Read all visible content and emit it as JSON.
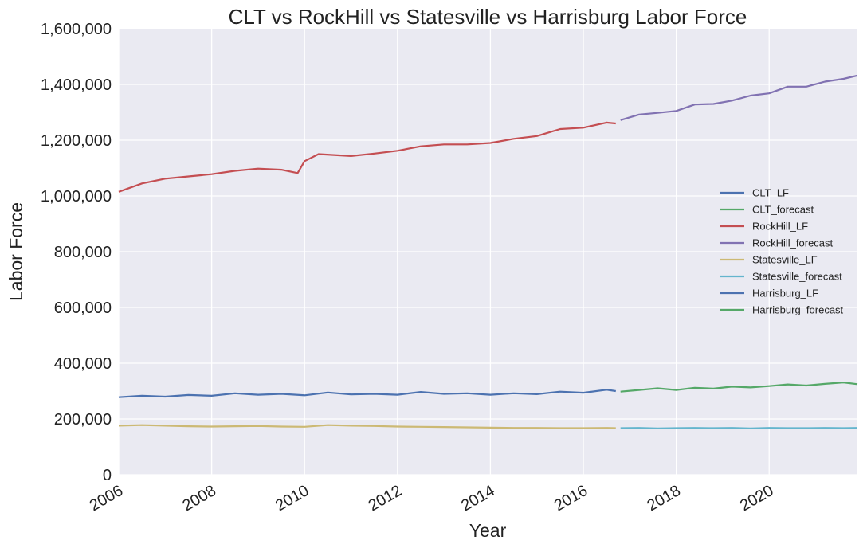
{
  "chart_data": {
    "type": "line",
    "title": "CLT vs RockHill vs Statesville vs Harrisburg Labor Force",
    "xlabel": "Year",
    "ylabel": "Labor Force",
    "xlim": [
      2006.0,
      2021.9
    ],
    "ylim": [
      0,
      1600000
    ],
    "x_ticks": [
      2006,
      2008,
      2010,
      2012,
      2014,
      2016,
      2018,
      2020
    ],
    "x_tick_labels": [
      "2006",
      "2008",
      "2010",
      "2012",
      "2014",
      "2016",
      "2018",
      "2020"
    ],
    "y_ticks": [
      0,
      200000,
      400000,
      600000,
      800000,
      1000000,
      1200000,
      1400000,
      1600000
    ],
    "y_tick_labels": [
      "0",
      "200,000",
      "400,000",
      "600,000",
      "800,000",
      "1,000,000",
      "1,200,000",
      "1,400,000",
      "1,600,000"
    ],
    "grid": true,
    "legend_position": "center-right",
    "series": [
      {
        "name": "CLT_LF",
        "color": "#4c72b0",
        "x": [
          2006.0,
          2006.5,
          2007.0,
          2007.5,
          2008.0,
          2008.5,
          2009.0,
          2009.5,
          2010.0,
          2010.5,
          2011.0,
          2011.5,
          2012.0,
          2012.5,
          2013.0,
          2013.5,
          2014.0,
          2014.5,
          2015.0,
          2015.5,
          2016.0,
          2016.5,
          2016.7
        ],
        "y": [
          278000,
          283000,
          280000,
          286000,
          283000,
          292000,
          287000,
          290000,
          285000,
          295000,
          288000,
          290000,
          287000,
          297000,
          290000,
          292000,
          287000,
          292000,
          289000,
          298000,
          294000,
          305000,
          300000
        ]
      },
      {
        "name": "CLT_forecast",
        "color": "#55a868",
        "x": [
          2016.8,
          2017.2,
          2017.6,
          2018.0,
          2018.4,
          2018.8,
          2019.2,
          2019.6,
          2020.0,
          2020.4,
          2020.8,
          2021.2,
          2021.6,
          2021.9
        ],
        "y": [
          298000,
          304000,
          310000,
          304000,
          312000,
          309000,
          316000,
          313000,
          318000,
          324000,
          320000,
          326000,
          331000,
          325000
        ]
      },
      {
        "name": "RockHill_LF",
        "color": "#c44e52",
        "x": [
          2006.0,
          2006.5,
          2007.0,
          2007.5,
          2008.0,
          2008.5,
          2009.0,
          2009.5,
          2009.85,
          2010.0,
          2010.3,
          2011.0,
          2011.5,
          2012.0,
          2012.5,
          2013.0,
          2013.5,
          2014.0,
          2014.5,
          2015.0,
          2015.5,
          2016.0,
          2016.5,
          2016.7
        ],
        "y": [
          1015000,
          1045000,
          1062000,
          1070000,
          1078000,
          1090000,
          1098000,
          1094000,
          1082000,
          1125000,
          1150000,
          1143000,
          1152000,
          1162000,
          1178000,
          1185000,
          1185000,
          1190000,
          1205000,
          1215000,
          1240000,
          1245000,
          1263000,
          1260000
        ]
      },
      {
        "name": "RockHill_forecast",
        "color": "#8172b2",
        "x": [
          2016.8,
          2017.2,
          2017.6,
          2018.0,
          2018.4,
          2018.8,
          2019.2,
          2019.6,
          2020.0,
          2020.4,
          2020.8,
          2021.2,
          2021.6,
          2021.9
        ],
        "y": [
          1272000,
          1292000,
          1298000,
          1305000,
          1328000,
          1330000,
          1342000,
          1360000,
          1368000,
          1392000,
          1392000,
          1410000,
          1420000,
          1432000
        ]
      },
      {
        "name": "Statesville_LF",
        "color": "#ccb974",
        "x": [
          2006.0,
          2006.5,
          2007.0,
          2007.5,
          2008.0,
          2008.5,
          2009.0,
          2009.5,
          2010.0,
          2010.5,
          2011.0,
          2011.5,
          2012.0,
          2012.5,
          2013.0,
          2013.5,
          2014.0,
          2014.5,
          2015.0,
          2015.5,
          2016.0,
          2016.5,
          2016.7
        ],
        "y": [
          176000,
          178000,
          176000,
          174000,
          173000,
          174000,
          175000,
          173000,
          172000,
          178000,
          176000,
          175000,
          173000,
          172000,
          171000,
          170000,
          169000,
          168000,
          168000,
          167000,
          167000,
          168000,
          167000
        ]
      },
      {
        "name": "Statesville_forecast",
        "color": "#64b5cd",
        "x": [
          2016.8,
          2017.2,
          2017.6,
          2018.0,
          2018.4,
          2018.8,
          2019.2,
          2019.6,
          2020.0,
          2020.4,
          2020.8,
          2021.2,
          2021.6,
          2021.9
        ],
        "y": [
          167000,
          168000,
          166000,
          167000,
          168000,
          167000,
          168000,
          166000,
          168000,
          167000,
          167000,
          168000,
          167000,
          168000
        ]
      },
      {
        "name": "Harrisburg_LF",
        "color": "#4c72b0",
        "x": [],
        "y": []
      },
      {
        "name": "Harrisburg_forecast",
        "color": "#55a868",
        "x": [],
        "y": []
      }
    ]
  }
}
